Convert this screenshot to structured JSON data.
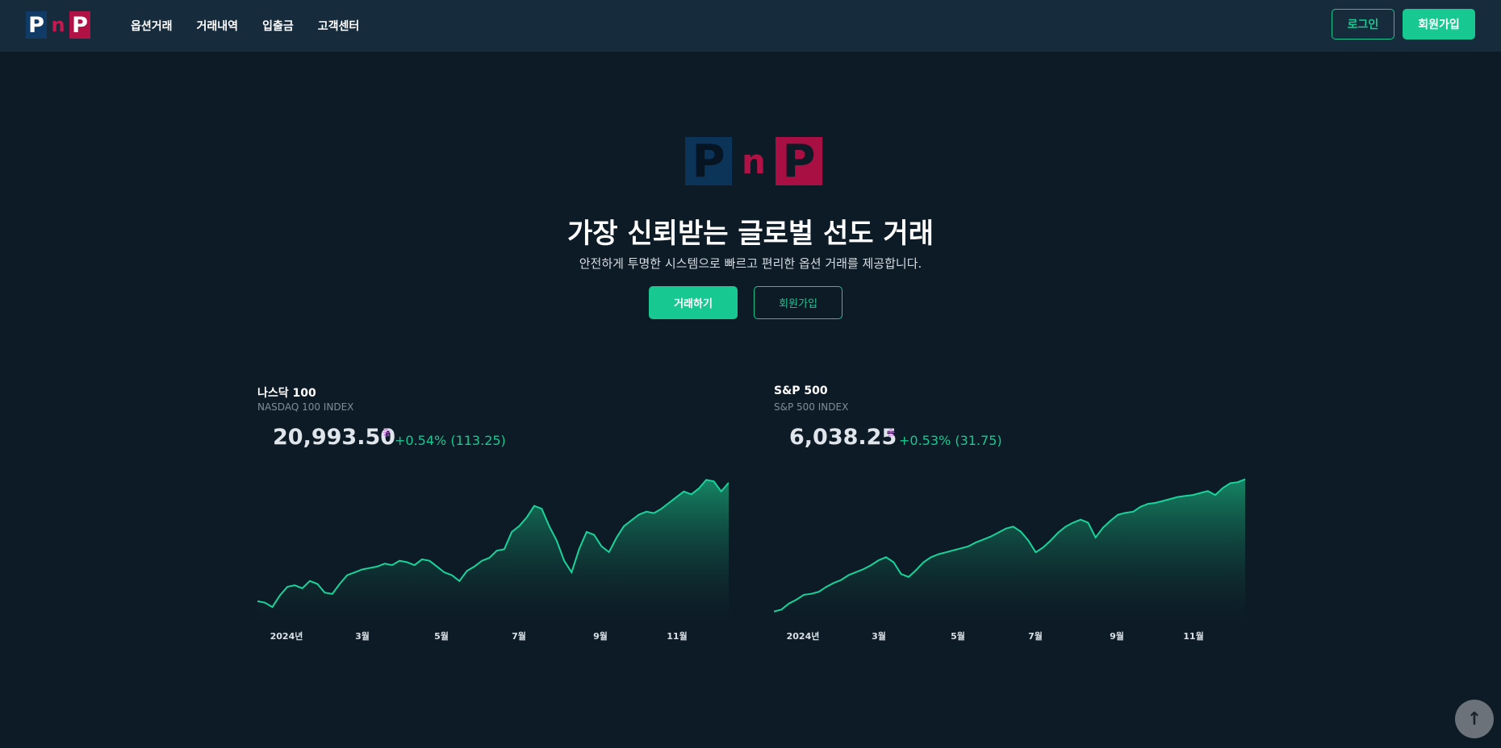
{
  "header": {
    "logo": [
      "P",
      "n",
      "P"
    ],
    "nav": [
      "옵션거래",
      "거래내역",
      "입출금",
      "고객센터"
    ],
    "login_label": "로그인",
    "signup_label": "회원가입"
  },
  "hero": {
    "logo": [
      "P",
      "n",
      "P"
    ],
    "title": "가장 신뢰받는 글로벌 선도 거래",
    "subtitle": "안전하게 투명한 시스템으로 빠르고 편리한 옵션 거래를 제공합니다.",
    "trade_button": "거래하기",
    "join_button": "회원가입"
  },
  "colors": {
    "accent": "#17c990",
    "logo_blue": "#0f3b66",
    "logo_red": "#b01245",
    "background": "#0d1b26",
    "header": "#162b3c"
  },
  "markets": [
    {
      "name": "나스닥 100",
      "subtitle": "NASDAQ 100 INDEX",
      "price": "20,993.50",
      "mark": "종",
      "change": "+0.54% (113.25)"
    },
    {
      "name": "S&P 500",
      "subtitle": "S&P 500 INDEX",
      "price": "6,038.25",
      "mark": "종",
      "change": "+0.53% (31.75)"
    }
  ],
  "chart_data": [
    {
      "type": "area",
      "name": "나스닥 100",
      "x_ticks": [
        "2024년",
        "3월",
        "5월",
        "7월",
        "9월",
        "11월"
      ],
      "x_range": [
        "2024-01",
        "2024-12"
      ],
      "ylim": [
        16200,
        21500
      ],
      "series": [
        {
          "values": [
            16900,
            16850,
            16700,
            17100,
            17400,
            17450,
            17350,
            17600,
            17500,
            17200,
            17150,
            17500,
            17800,
            17900,
            18000,
            18050,
            18100,
            18200,
            18150,
            18300,
            18250,
            18150,
            18350,
            18300,
            18100,
            17900,
            17800,
            17600,
            17950,
            18100,
            18300,
            18400,
            18650,
            18700,
            19300,
            19500,
            19800,
            20200,
            20100,
            19500,
            19000,
            18300,
            17900,
            18700,
            19300,
            19200,
            18800,
            18600,
            19100,
            19500,
            19700,
            19900,
            20000,
            19950,
            20100,
            20300,
            20500,
            20700,
            20600,
            20800,
            21100,
            21050,
            20700,
            21000
          ]
        }
      ]
    },
    {
      "type": "area",
      "name": "S&P 500",
      "x_ticks": [
        "2024년",
        "3월",
        "5월",
        "7월",
        "9월",
        "11월"
      ],
      "x_range": [
        "2024-01",
        "2024-12"
      ],
      "ylim": [
        4600,
        6150
      ],
      "series": [
        {
          "values": [
            4700,
            4720,
            4780,
            4820,
            4870,
            4880,
            4900,
            4950,
            4990,
            5020,
            5070,
            5100,
            5130,
            5170,
            5220,
            5250,
            5200,
            5080,
            5050,
            5120,
            5200,
            5250,
            5280,
            5300,
            5320,
            5340,
            5360,
            5400,
            5430,
            5460,
            5500,
            5540,
            5560,
            5510,
            5420,
            5300,
            5350,
            5420,
            5500,
            5560,
            5600,
            5630,
            5600,
            5450,
            5550,
            5620,
            5680,
            5700,
            5710,
            5760,
            5790,
            5800,
            5820,
            5840,
            5860,
            5870,
            5880,
            5900,
            5920,
            5880,
            5950,
            6000,
            6010,
            6040
          ]
        }
      ]
    }
  ]
}
